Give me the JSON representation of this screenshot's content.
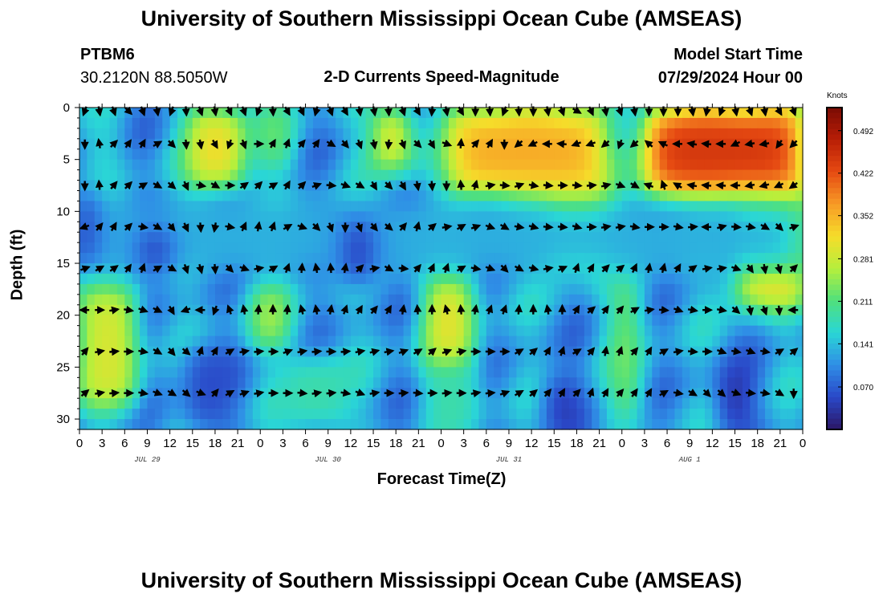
{
  "page": {
    "title_top": "University of Southern Mississippi Ocean Cube (AMSEAS)",
    "title_bottom": "University of Southern Mississippi Ocean Cube (AMSEAS)",
    "station_id": "PTBM6",
    "coordinates": "30.2120N  88.5050W",
    "plot_title": "2-D Currents Speed-Magnitude",
    "model_start_label": "Model Start Time",
    "model_start_value": "07/29/2024 Hour 00",
    "colorbar_unit": "Knots"
  },
  "colors": {
    "ramp": [
      "#2b1766",
      "#2a48c8",
      "#2f8ee6",
      "#2ad6d6",
      "#50e07c",
      "#b6ef3c",
      "#f6dc2a",
      "#f79a26",
      "#e64a12",
      "#b81e06",
      "#7a0b04"
    ],
    "arrow": "#000000"
  },
  "chart_data": {
    "type": "heatmap",
    "title": "2-D Currents Speed-Magnitude",
    "xlabel": "Forecast Time(Z)",
    "ylabel": "Depth (ft)",
    "x_hours": [
      0,
      96
    ],
    "x_tick_labels": [
      "0",
      "3",
      "6",
      "9",
      "12",
      "15",
      "18",
      "21",
      "0",
      "3",
      "6",
      "9",
      "12",
      "15",
      "18",
      "21",
      "0",
      "3",
      "6",
      "9",
      "12",
      "15",
      "18",
      "21",
      "0",
      "3",
      "6",
      "9",
      "12",
      "15",
      "18",
      "21",
      "0"
    ],
    "date_labels": [
      {
        "label": "JUL 29",
        "hour": 9
      },
      {
        "label": "JUL 30",
        "hour": 33
      },
      {
        "label": "JUL 31",
        "hour": 57
      },
      {
        "label": "AUG 1",
        "hour": 81
      }
    ],
    "y_ticks": [
      0,
      5,
      10,
      15,
      20,
      25,
      30
    ],
    "ylim": [
      0,
      31
    ],
    "colorbar": {
      "unit": "Knots",
      "range": [
        0.0,
        0.53
      ],
      "ticks": [
        "0.492",
        "0.422",
        "0.352",
        "0.281",
        "0.211",
        "0.141",
        "0.070"
      ]
    },
    "speed_blobs": [
      {
        "x0": 14.5,
        "x1": 22,
        "y0": 0,
        "y1": 8,
        "v": 0.33
      },
      {
        "x0": 24,
        "x1": 28,
        "y0": 0,
        "y1": 6,
        "v": 0.24
      },
      {
        "x0": 39,
        "x1": 44,
        "y0": 0,
        "y1": 6,
        "v": 0.34
      },
      {
        "x0": 49,
        "x1": 70,
        "y0": 0,
        "y1": 9,
        "v": 0.36
      },
      {
        "x0": 62,
        "x1": 70,
        "y0": 8,
        "y1": 15,
        "v": 0.37
      },
      {
        "x0": 75,
        "x1": 96,
        "y0": 0,
        "y1": 9,
        "v": 0.45
      },
      {
        "x0": 87,
        "x1": 96,
        "y0": 9,
        "y1": 19,
        "v": 0.36
      },
      {
        "x0": 0,
        "x1": 7.5,
        "y0": 17,
        "y1": 29,
        "v": 0.3
      },
      {
        "x0": 23,
        "x1": 27.5,
        "y0": 17,
        "y1": 23,
        "v": 0.28
      },
      {
        "x0": 46,
        "x1": 52,
        "y0": 15.5,
        "y1": 25.5,
        "v": 0.32
      },
      {
        "x0": 71,
        "x1": 74,
        "y0": 16,
        "y1": 30,
        "v": 0.26
      },
      {
        "x0": 2,
        "x1": 4.5,
        "y0": 0,
        "y1": 15,
        "v": 0.17
      },
      {
        "x0": 27,
        "x1": 36,
        "y0": 24,
        "y1": 31,
        "v": 0.19
      },
      {
        "x0": 46,
        "x1": 53,
        "y0": 25,
        "y1": 31,
        "v": 0.19
      },
      {
        "x0": 0,
        "x1": 96,
        "y0": 9,
        "y1": 16,
        "v": 0.13
      },
      {
        "x0": 8,
        "x1": 12,
        "y0": 12,
        "y1": 15.5,
        "v": 0.02
      },
      {
        "x0": 35,
        "x1": 39,
        "y0": 11,
        "y1": 17,
        "v": 0.03
      },
      {
        "x0": 14,
        "x1": 20,
        "y0": 23,
        "y1": 31,
        "v": 0.05
      },
      {
        "x0": 62,
        "x1": 66,
        "y0": 26,
        "y1": 31,
        "v": 0.02
      },
      {
        "x0": 85,
        "x1": 89,
        "y0": 25,
        "y1": 31,
        "v": 0.01
      },
      {
        "x0": 0,
        "x1": 2,
        "y0": 8,
        "y1": 15,
        "v": 0.01
      }
    ],
    "arrow_rows": [
      {
        "depth": 0,
        "dir": [
          200,
          170,
          160,
          135,
          160,
          170,
          200,
          175,
          160,
          170,
          155,
          160,
          200,
          175,
          150,
          155,
          195,
          160,
          150,
          170,
          170,
          175,
          160,
          150,
          185,
          170,
          150,
          180,
          175,
          200,
          175,
          180,
          170,
          160,
          120,
          155,
          170,
          160,
          170,
          180,
          180,
          180,
          170,
          190,
          200,
          170,
          160,
          170,
          150,
          160
        ]
      },
      {
        "depth": 3.5,
        "dir": [
          180,
          350,
          45,
          35,
          30,
          60,
          135,
          175,
          170,
          150,
          200,
          160,
          90,
          30,
          20,
          40,
          35,
          120,
          140,
          160,
          170,
          185,
          160,
          135,
          150,
          110,
          5,
          40,
          30,
          180,
          230,
          245,
          270,
          275,
          250,
          250,
          230,
          200,
          230,
          310,
          295,
          270,
          280,
          275,
          270,
          245,
          260,
          260,
          215,
          225
        ]
      },
      {
        "depth": 7.5,
        "dir": [
          180,
          355,
          40,
          45,
          60,
          120,
          130,
          155,
          100,
          120,
          90,
          55,
          45,
          60,
          30,
          45,
          70,
          95,
          110,
          120,
          150,
          135,
          150,
          170,
          175,
          180,
          355,
          15,
          80,
          95,
          70,
          100,
          95,
          90,
          95,
          85,
          75,
          110,
          120,
          290,
          340,
          300,
          280,
          275,
          275,
          270,
          260,
          255,
          245,
          235
        ]
      },
      {
        "depth": 11.5,
        "dir": [
          250,
          40,
          30,
          45,
          100,
          120,
          140,
          155,
          175,
          190,
          100,
          25,
          10,
          20,
          60,
          110,
          135,
          160,
          180,
          160,
          140,
          130,
          40,
          15,
          50,
          80,
          60,
          70,
          110,
          120,
          100,
          105,
          95,
          95,
          105,
          90,
          80,
          80,
          100,
          90,
          90,
          100,
          85,
          270,
          75,
          95,
          100,
          120,
          135,
          70
        ]
      },
      {
        "depth": 15.5,
        "dir": [
          70,
          60,
          55,
          35,
          20,
          60,
          120,
          160,
          165,
          175,
          135,
          110,
          80,
          60,
          20,
          5,
          350,
          355,
          10,
          45,
          80,
          120,
          95,
          40,
          25,
          20,
          60,
          100,
          110,
          135,
          120,
          105,
          80,
          65,
          20,
          30,
          45,
          50,
          25,
          10,
          15,
          30,
          55,
          80,
          80,
          110,
          145,
          170,
          165,
          45
        ]
      },
      {
        "depth": 19.5,
        "dir": [
          270,
          90,
          80,
          100,
          110,
          115,
          150,
          250,
          270,
          200,
          340,
          350,
          5,
          0,
          5,
          345,
          350,
          10,
          20,
          30,
          40,
          30,
          10,
          355,
          0,
          345,
          355,
          10,
          20,
          20,
          5,
          0,
          350,
          0,
          30,
          50,
          35,
          40,
          60,
          80,
          95,
          110,
          100,
          90,
          100,
          130,
          170,
          160,
          175,
          270
        ]
      },
      {
        "depth": 23.5,
        "dir": [
          40,
          80,
          85,
          90,
          100,
          120,
          140,
          130,
          20,
          30,
          60,
          80,
          85,
          90,
          70,
          80,
          85,
          90,
          85,
          80,
          75,
          80,
          70,
          60,
          50,
          70,
          80,
          90,
          90,
          90,
          60,
          50,
          30,
          20,
          60,
          40,
          10,
          20,
          40,
          30,
          60,
          80,
          95,
          90,
          110,
          100,
          110,
          100,
          60,
          50
        ]
      },
      {
        "depth": 27.5,
        "dir": [
          50,
          80,
          85,
          90,
          100,
          110,
          120,
          130,
          110,
          40,
          60,
          70,
          80,
          90,
          90,
          95,
          80,
          85,
          100,
          110,
          80,
          90,
          85,
          95,
          90,
          85,
          90,
          80,
          85,
          70,
          60,
          50,
          40,
          30,
          45,
          20,
          30,
          40,
          35,
          30,
          60,
          100,
          120,
          135,
          130,
          110,
          95,
          100,
          120,
          180
        ]
      }
    ]
  }
}
